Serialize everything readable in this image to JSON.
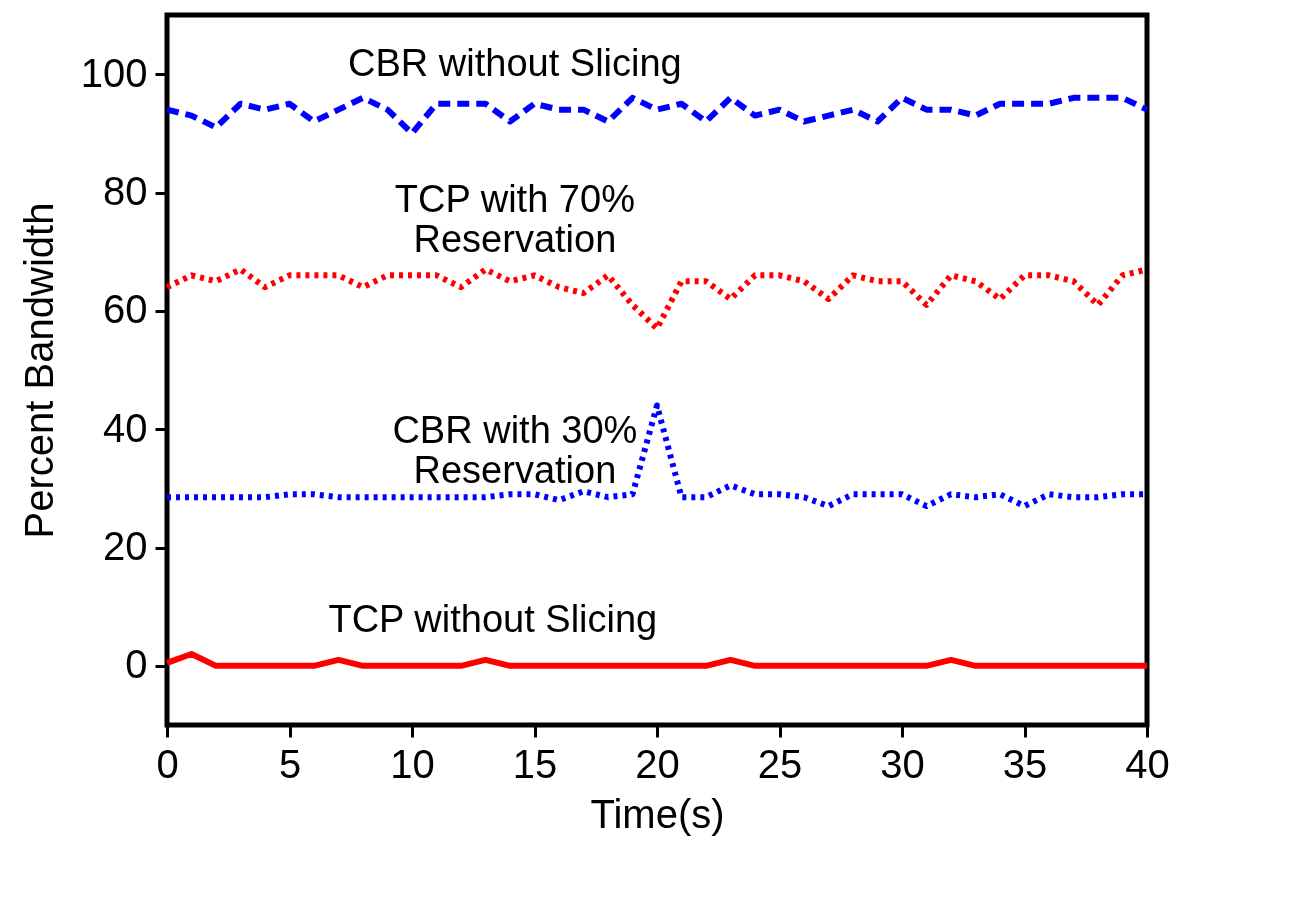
{
  "chart_data": {
    "type": "line",
    "xlabel": "Time(s)",
    "ylabel": "Percent Bandwidth",
    "x": [
      0,
      1,
      2,
      3,
      4,
      5,
      6,
      7,
      8,
      9,
      10,
      11,
      12,
      13,
      14,
      15,
      16,
      17,
      18,
      19,
      20,
      21,
      22,
      23,
      24,
      25,
      26,
      27,
      28,
      29,
      30,
      31,
      32,
      33,
      34,
      35,
      36,
      37,
      38,
      39,
      40
    ],
    "series": [
      {
        "name": "CBR without Slicing",
        "color": "#0000ff",
        "line_style": "dashed",
        "values": [
          94,
          93,
          91,
          95,
          94,
          95,
          92,
          94,
          96,
          94,
          90,
          95,
          95,
          95,
          92,
          95,
          94,
          94,
          92,
          96,
          94,
          95,
          92,
          96,
          93,
          94,
          92,
          93,
          94,
          92,
          96,
          94,
          94,
          93,
          95,
          95,
          95,
          96,
          96,
          96,
          94
        ]
      },
      {
        "name": "TCP with 70% Reservation",
        "color": "#ff0000",
        "line_style": "dotted",
        "values": [
          64,
          66,
          65,
          67,
          64,
          66,
          66,
          66,
          64,
          66,
          66,
          66,
          64,
          67,
          65,
          66,
          64,
          63,
          66,
          61,
          57,
          65,
          65,
          62,
          66,
          66,
          65,
          62,
          66,
          65,
          65,
          61,
          66,
          65,
          62,
          66,
          66,
          65,
          61,
          66,
          67
        ]
      },
      {
        "name": "CBR with 30% Reservation",
        "color": "#0000ff",
        "line_style": "dotted",
        "values": [
          28.5,
          28.5,
          28.5,
          28.5,
          28.5,
          29,
          29,
          28.5,
          28.5,
          28.5,
          28.5,
          28.5,
          28.5,
          28.5,
          29,
          29,
          28,
          29.5,
          28.5,
          29,
          44,
          28.5,
          28.5,
          30.5,
          29,
          29,
          28.5,
          27,
          29,
          29,
          29,
          27,
          29,
          28.5,
          29,
          27,
          29,
          28.5,
          28.5,
          29,
          29
        ]
      },
      {
        "name": "TCP without Slicing",
        "color": "#ff0000",
        "line_style": "solid",
        "values": [
          0.5,
          2,
          0,
          0,
          0,
          0,
          0,
          1,
          0,
          0,
          0,
          0,
          0,
          1,
          0,
          0,
          0,
          0,
          0,
          0,
          0,
          0,
          0,
          1,
          0,
          0,
          0,
          0,
          0,
          0,
          0,
          0,
          1,
          0,
          0,
          0,
          0,
          0,
          0,
          0,
          0
        ]
      }
    ],
    "xlim": [
      0,
      40
    ],
    "xticks": [
      0,
      5,
      10,
      15,
      20,
      25,
      30,
      35,
      40
    ],
    "ylim": [
      -10,
      110
    ],
    "yticks": [
      0,
      20,
      40,
      60,
      80,
      100
    ],
    "grid": false
  }
}
